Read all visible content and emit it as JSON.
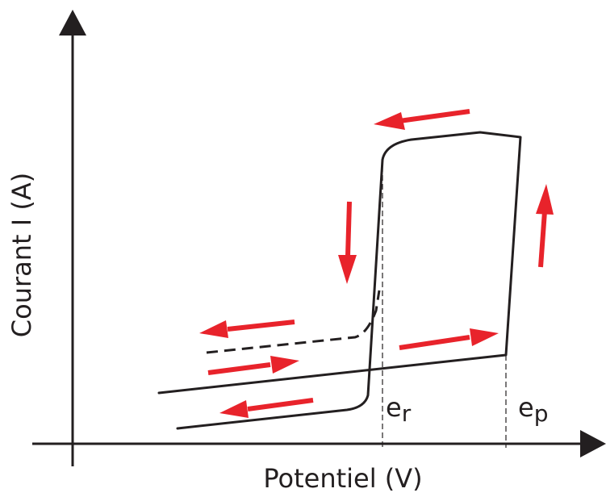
{
  "axes": {
    "x_label": "Potentiel (V)",
    "y_label": "Courant I (A)"
  },
  "markers": [
    {
      "id": "er",
      "base": "e",
      "sub": "r"
    },
    {
      "id": "ep",
      "base": "e",
      "sub": "p"
    }
  ],
  "colors": {
    "curve": "#231f20",
    "arrows": "#e8232b"
  },
  "arrows": [
    {
      "id": "top",
      "direction": "left"
    },
    {
      "id": "right-up",
      "direction": "up"
    },
    {
      "id": "middle-down",
      "direction": "down"
    },
    {
      "id": "dashed-left",
      "direction": "left"
    },
    {
      "id": "mid-right",
      "direction": "right"
    },
    {
      "id": "lower-right",
      "direction": "right"
    },
    {
      "id": "bottom-left",
      "direction": "left"
    }
  ]
}
